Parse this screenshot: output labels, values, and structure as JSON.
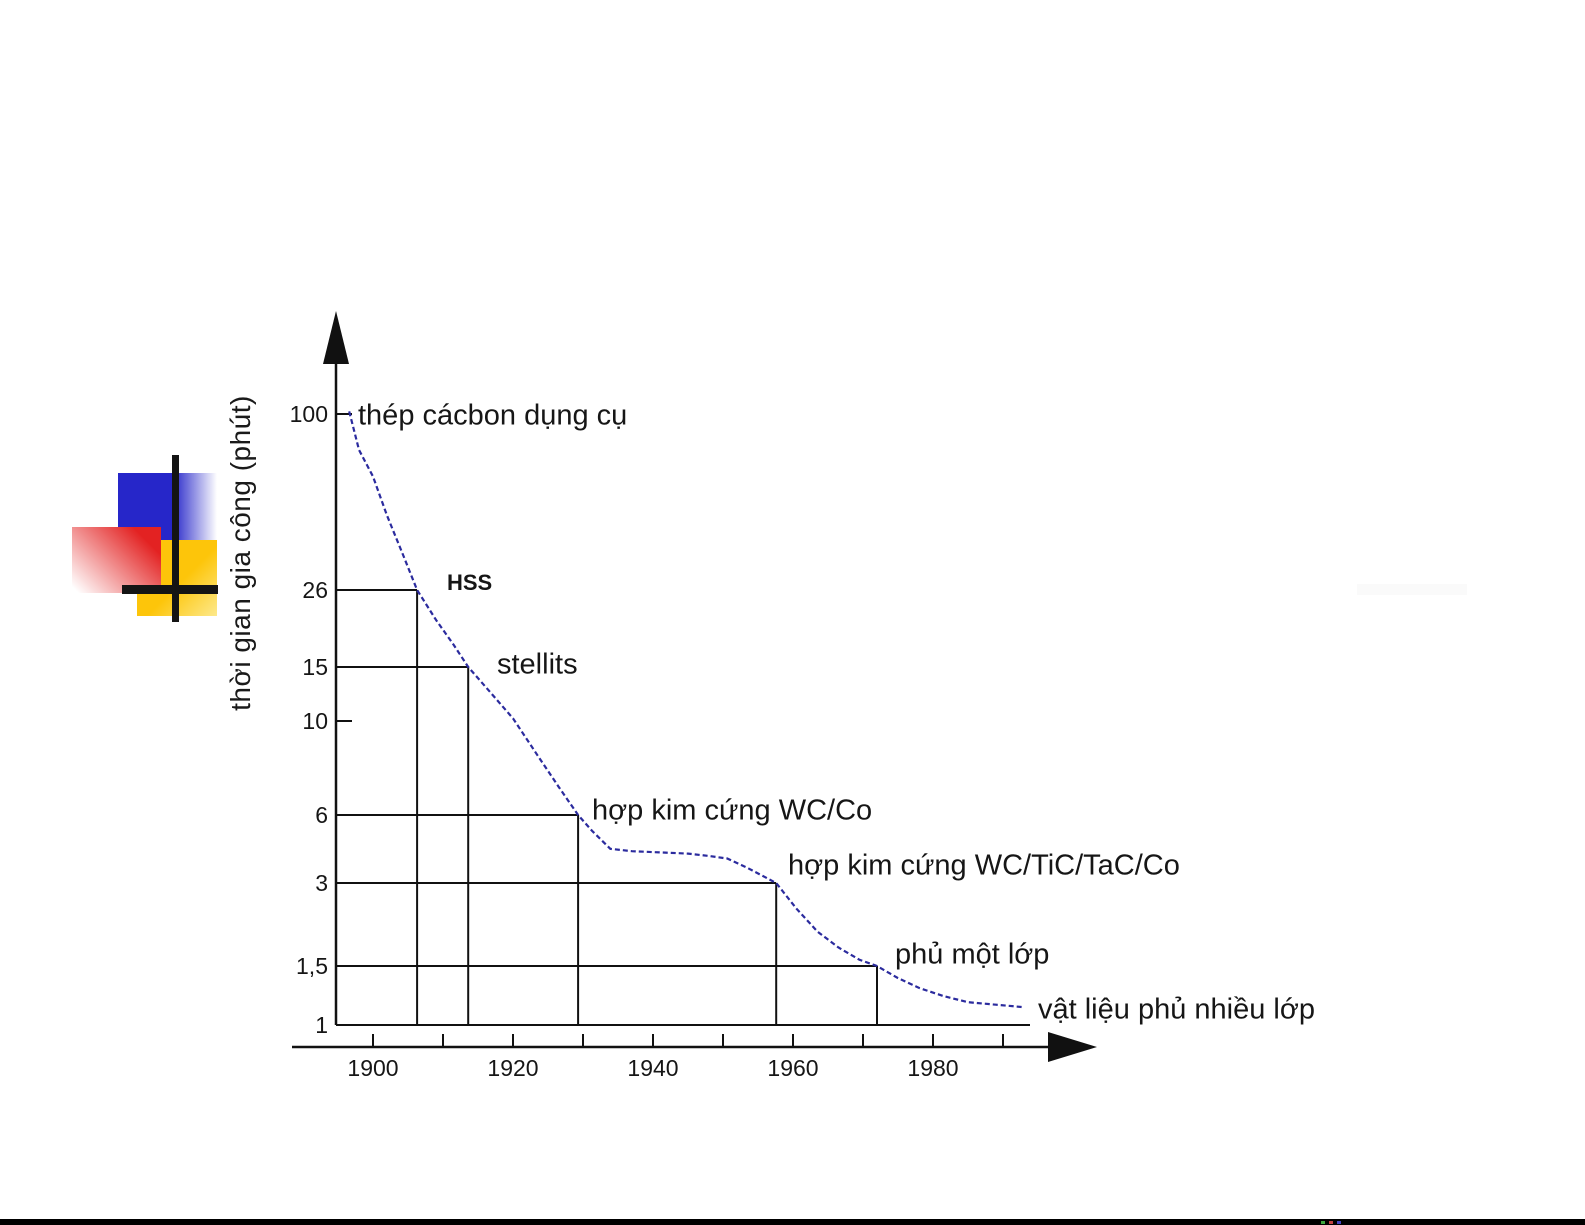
{
  "page": {
    "background_color": "#ffffff",
    "bottom_bar_color": "#000000"
  },
  "decorations": {
    "logo": {
      "blue": "#2626c9",
      "red": "#e32222",
      "yellow": "#fdc50a",
      "bar_color": "#141414"
    },
    "bottom_bar_dots": [
      "#3da53d",
      "#c04040",
      "#4040c0"
    ]
  },
  "chart_data": {
    "type": "line",
    "title": "",
    "xlabel": "",
    "ylabel": "thời gian gia công (phút)",
    "x_tick_labels": [
      "1900",
      "1920",
      "1940",
      "1960",
      "1980"
    ],
    "x_labeled_tick_years": [
      1900,
      1920,
      1940,
      1960,
      1980
    ],
    "x_minor_tick_years": [
      1900,
      1910,
      1920,
      1930,
      1940,
      1950,
      1960,
      1970,
      1980,
      1990
    ],
    "y_tick_labels": [
      "100",
      "26",
      "15",
      "10",
      "6",
      "3",
      "1,5",
      "1"
    ],
    "y_tick_values": [
      100,
      26,
      15,
      10,
      6,
      3,
      1.5,
      1
    ],
    "y_extra_tick_values": [
      100,
      10
    ],
    "y_scale": "logarithmic (hand drawn)",
    "xlim": [
      1895,
      1994
    ],
    "ylim": [
      1,
      110
    ],
    "grid": "milestone guide lines only",
    "legend": "none",
    "curve_color": "#2b2b9e",
    "axis_color": "#111111",
    "series": [
      {
        "name": "tool-life-curve",
        "points": [
          [
            1896.6,
            102
          ],
          [
            1898,
            76
          ],
          [
            1900,
            62
          ],
          [
            1902,
            46
          ],
          [
            1904.3,
            34
          ],
          [
            1906.3,
            26
          ],
          [
            1909,
            21
          ],
          [
            1911.5,
            17.6
          ],
          [
            1913.6,
            15
          ],
          [
            1916.5,
            12.6
          ],
          [
            1920,
            10.2
          ],
          [
            1923.5,
            8.3
          ],
          [
            1926.5,
            7
          ],
          [
            1929.3,
            6
          ],
          [
            1931.3,
            5.1
          ],
          [
            1933.9,
            4.25
          ],
          [
            1937,
            4.15
          ],
          [
            1941,
            4.1
          ],
          [
            1945,
            4.05
          ],
          [
            1948,
            3.95
          ],
          [
            1950.6,
            3.85
          ],
          [
            1953.5,
            3.5
          ],
          [
            1957.6,
            3
          ],
          [
            1960.5,
            2.42
          ],
          [
            1963.5,
            2
          ],
          [
            1966.5,
            1.75
          ],
          [
            1969.5,
            1.58
          ],
          [
            1972,
            1.5
          ],
          [
            1975,
            1.38
          ],
          [
            1978,
            1.29
          ],
          [
            1981.5,
            1.22
          ],
          [
            1985,
            1.17
          ],
          [
            1989,
            1.15
          ],
          [
            1993,
            1.13
          ]
        ]
      }
    ],
    "milestones": [
      {
        "label": "thép cácbon dụng cụ",
        "value": 100,
        "year": 1896.6,
        "guides": "tick"
      },
      {
        "label": "HSS",
        "value": 26,
        "year": 1906.3,
        "guides": "cross"
      },
      {
        "label": "stellits",
        "value": 15,
        "year": 1913.6,
        "guides": "cross"
      },
      {
        "label": "hợp kim cứng WC/Co",
        "value": 6,
        "year": 1929.3,
        "guides": "cross"
      },
      {
        "label": "hợp kim cứng WC/TiC/TaC/Co",
        "value": 3,
        "year": 1957.6,
        "guides": "cross"
      },
      {
        "label": "phủ một lớp",
        "value": 1.5,
        "year": 1972,
        "guides": "cross"
      },
      {
        "label": "vật liệu phủ nhiều lớp",
        "value": 1,
        "year": 1993,
        "guides": "baseline"
      }
    ]
  }
}
